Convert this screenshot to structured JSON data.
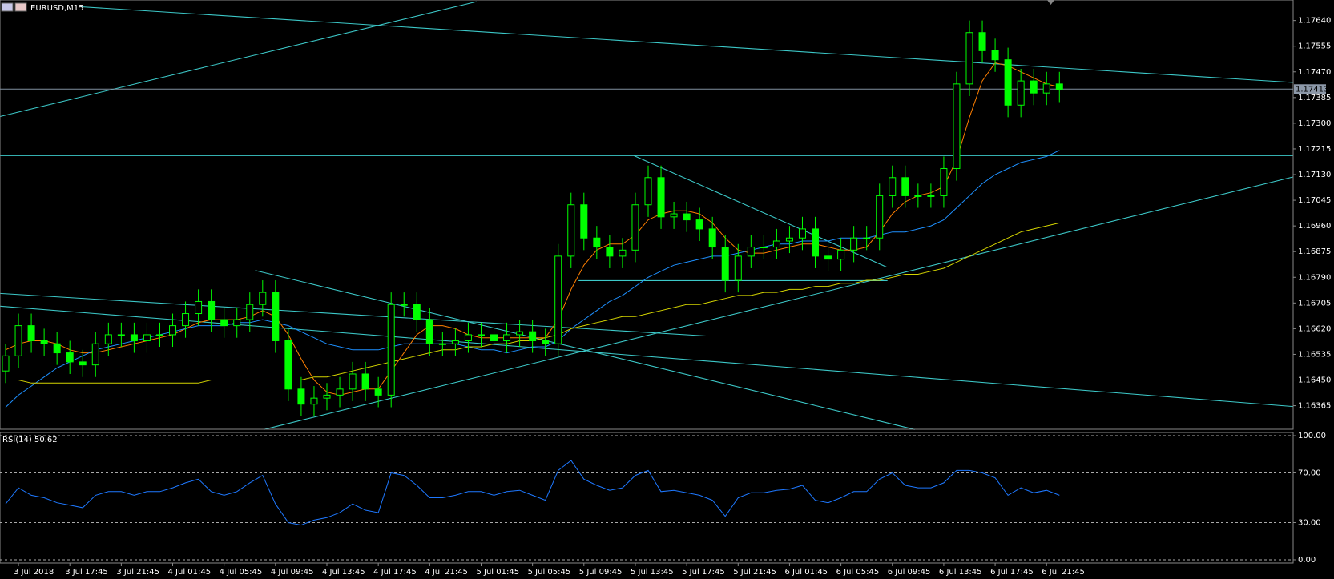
{
  "chart_data": {
    "type": "candlestick",
    "title": "EURUSD,M15",
    "last_price": 1.17413,
    "categories": [
      null,
      "3 Jul 2018",
      null,
      null,
      null,
      "3 Jul 17:45",
      null,
      null,
      null,
      "3 Jul 21:45",
      null,
      null,
      null,
      "4 Jul 01:45",
      null,
      null,
      null,
      "4 Jul 05:45",
      null,
      null,
      null,
      "4 Jul 09:45",
      null,
      null,
      null,
      "4 Jul 13:45",
      null,
      null,
      null,
      "4 Jul 17:45",
      null,
      null,
      null,
      "4 Jul 21:45",
      null,
      null,
      null,
      "5 Jul 01:45",
      null,
      null,
      null,
      "5 Jul 05:45",
      null,
      null,
      null,
      "5 Jul 09:45",
      null,
      null,
      null,
      "5 Jul 13:45",
      null,
      null,
      null,
      "5 Jul 17:45",
      null,
      null,
      null,
      "5 Jul 21:45",
      null,
      null,
      null,
      "6 Jul 01:45",
      null,
      null,
      null,
      "6 Jul 05:45",
      null,
      null,
      null,
      "6 Jul 09:45",
      null,
      null,
      null,
      "6 Jul 13:45",
      null,
      null,
      null,
      "6 Jul 17:45",
      null,
      null,
      null,
      "6 Jul 21:45",
      null
    ],
    "open": [
      1.1648,
      1.1653,
      1.1663,
      1.1658,
      1.1657,
      1.1654,
      1.1651,
      1.165,
      1.1657,
      1.166,
      1.166,
      1.1658,
      1.166,
      1.166,
      1.1663,
      1.1667,
      1.1671,
      1.1665,
      1.1663,
      1.1665,
      1.167,
      1.1674,
      1.1658,
      1.1642,
      1.1637,
      1.1639,
      1.164,
      1.1642,
      1.1647,
      1.1642,
      1.164,
      1.167,
      1.167,
      1.1665,
      1.1657,
      1.1657,
      1.1658,
      1.166,
      1.166,
      1.1658,
      1.166,
      1.1661,
      1.1658,
      1.1657,
      1.1686,
      1.1703,
      1.1692,
      1.1689,
      1.1686,
      1.1688,
      1.1703,
      1.1712,
      1.1699,
      1.17,
      1.1698,
      1.1695,
      1.1689,
      1.1678,
      1.1686,
      1.1689,
      1.1689,
      1.1691,
      1.1692,
      1.1695,
      1.1686,
      1.1685,
      1.1688,
      1.1692,
      1.1692,
      1.1706,
      1.1712,
      1.1706,
      1.1706,
      1.1706,
      1.1715,
      1.1743,
      1.176,
      1.1754,
      1.1751,
      1.1736,
      1.1744,
      1.174,
      1.1743
    ],
    "high": [
      1.1657,
      1.1667,
      1.1667,
      1.1662,
      1.1661,
      1.1658,
      1.1655,
      1.1661,
      1.1664,
      1.1664,
      1.1664,
      1.1664,
      1.1664,
      1.1667,
      1.1671,
      1.1675,
      1.1675,
      1.1669,
      1.1669,
      1.1674,
      1.1678,
      1.1678,
      1.1662,
      1.1646,
      1.1643,
      1.1644,
      1.1646,
      1.1651,
      1.1651,
      1.1646,
      1.1674,
      1.1674,
      1.1674,
      1.1669,
      1.1661,
      1.1662,
      1.1664,
      1.1664,
      1.1664,
      1.1664,
      1.1665,
      1.1665,
      1.1662,
      1.169,
      1.1707,
      1.1707,
      1.1696,
      1.1693,
      1.1692,
      1.1707,
      1.1716,
      1.1716,
      1.1704,
      1.1704,
      1.1702,
      1.1699,
      1.1693,
      1.169,
      1.1693,
      1.1693,
      1.1695,
      1.1696,
      1.1699,
      1.1699,
      1.169,
      1.1692,
      1.1696,
      1.1696,
      1.171,
      1.1716,
      1.1716,
      1.171,
      1.171,
      1.1719,
      1.1747,
      1.1764,
      1.1764,
      1.1758,
      1.1755,
      1.1748,
      1.1748,
      1.1747,
      1.1747
    ],
    "low": [
      1.1644,
      1.1649,
      1.1654,
      1.1653,
      1.165,
      1.1647,
      1.1646,
      1.1646,
      1.1653,
      1.1656,
      1.1654,
      1.1654,
      1.1656,
      1.1656,
      1.1659,
      1.1663,
      1.1661,
      1.1659,
      1.1659,
      1.1661,
      1.1666,
      1.1654,
      1.1638,
      1.1633,
      1.1633,
      1.1635,
      1.1636,
      1.1638,
      1.1638,
      1.1636,
      1.1636,
      1.1666,
      1.1661,
      1.1653,
      1.1653,
      1.1653,
      1.1654,
      1.1656,
      1.1654,
      1.1654,
      1.1656,
      1.1654,
      1.1653,
      1.1653,
      1.1682,
      1.1688,
      1.1685,
      1.1682,
      1.1682,
      1.1684,
      1.1699,
      1.1695,
      1.1695,
      1.1694,
      1.1691,
      1.1685,
      1.1674,
      1.1674,
      1.1682,
      1.1685,
      1.1685,
      1.1687,
      1.1688,
      1.1682,
      1.1681,
      1.1681,
      1.1684,
      1.1688,
      1.1688,
      1.1702,
      1.1702,
      1.1702,
      1.1702,
      1.1702,
      1.1711,
      1.1739,
      1.175,
      1.1747,
      1.1732,
      1.1732,
      1.1736,
      1.1736,
      1.1737
    ],
    "close": [
      1.1653,
      1.1663,
      1.1658,
      1.1657,
      1.1654,
      1.1651,
      1.165,
      1.1657,
      1.166,
      1.166,
      1.1658,
      1.166,
      1.166,
      1.1663,
      1.1667,
      1.1671,
      1.1665,
      1.1663,
      1.1665,
      1.167,
      1.1674,
      1.1658,
      1.1642,
      1.1637,
      1.1639,
      1.164,
      1.1642,
      1.1647,
      1.1642,
      1.164,
      1.167,
      1.167,
      1.1665,
      1.1657,
      1.1657,
      1.1658,
      1.166,
      1.166,
      1.1658,
      1.166,
      1.1661,
      1.1658,
      1.1657,
      1.1686,
      1.1703,
      1.1692,
      1.1689,
      1.1686,
      1.1688,
      1.1703,
      1.1712,
      1.1699,
      1.17,
      1.1698,
      1.1695,
      1.1689,
      1.1678,
      1.1686,
      1.1689,
      1.1689,
      1.1691,
      1.1692,
      1.1695,
      1.1686,
      1.1685,
      1.1688,
      1.1692,
      1.1692,
      1.1706,
      1.1712,
      1.1706,
      1.1706,
      1.1706,
      1.1715,
      1.1743,
      1.176,
      1.1754,
      1.1751,
      1.1736,
      1.1744,
      1.174,
      1.1743,
      1.1741
    ],
    "up_color": "#00ff00",
    "down_color": "#00ff00",
    "lines": [
      {
        "color": "#ff7f00",
        "values": [
          1.1655,
          1.1657,
          1.1658,
          1.1658,
          1.1657,
          1.1655,
          1.1654,
          1.1654,
          1.1655,
          1.1656,
          1.1657,
          1.1658,
          1.1659,
          1.166,
          1.1662,
          1.1664,
          1.1665,
          1.1665,
          1.1665,
          1.1666,
          1.1668,
          1.1666,
          1.166,
          1.1652,
          1.1645,
          1.1641,
          1.164,
          1.1641,
          1.1642,
          1.1642,
          1.1648,
          1.1654,
          1.166,
          1.1663,
          1.1663,
          1.1662,
          1.166,
          1.1659,
          1.1659,
          1.1659,
          1.1659,
          1.1659,
          1.1659,
          1.1665,
          1.1675,
          1.1683,
          1.1688,
          1.169,
          1.169,
          1.1693,
          1.1698,
          1.17,
          1.1701,
          1.1701,
          1.17,
          1.1697,
          1.1692,
          1.1688,
          1.1687,
          1.1687,
          1.1688,
          1.1689,
          1.169,
          1.169,
          1.1689,
          1.1688,
          1.1688,
          1.1689,
          1.1694,
          1.17,
          1.1704,
          1.1706,
          1.1707,
          1.1709,
          1.1718,
          1.1732,
          1.1744,
          1.175,
          1.1749,
          1.1747,
          1.1745,
          1.1743,
          1.1742
        ]
      },
      {
        "color": "#1e90ff",
        "values": [
          1.1636,
          1.164,
          1.1643,
          1.1646,
          1.1649,
          1.1651,
          1.1653,
          1.1655,
          1.1656,
          1.1657,
          1.1658,
          1.1659,
          1.166,
          1.1661,
          1.1662,
          1.1663,
          1.1663,
          1.1663,
          1.1664,
          1.1664,
          1.1665,
          1.1664,
          1.1663,
          1.1661,
          1.1659,
          1.1657,
          1.1656,
          1.1655,
          1.1655,
          1.1655,
          1.1656,
          1.1657,
          1.1657,
          1.1657,
          1.1657,
          1.1657,
          1.1656,
          1.1655,
          1.1655,
          1.1654,
          1.1655,
          1.1656,
          1.1656,
          1.1658,
          1.1662,
          1.1665,
          1.1668,
          1.1671,
          1.1673,
          1.1676,
          1.1679,
          1.1681,
          1.1683,
          1.1684,
          1.1685,
          1.1686,
          1.1686,
          1.1687,
          1.1688,
          1.1689,
          1.169,
          1.169,
          1.1691,
          1.1691,
          1.1691,
          1.1692,
          1.1692,
          1.1692,
          1.1693,
          1.1694,
          1.1694,
          1.1695,
          1.1696,
          1.1698,
          1.1702,
          1.1706,
          1.171,
          1.1713,
          1.1715,
          1.1717,
          1.1718,
          1.1719,
          1.1721
        ]
      },
      {
        "color": "#d4d400",
        "values": [
          1.1645,
          1.1645,
          1.1644,
          1.1644,
          1.1644,
          1.1644,
          1.1644,
          1.1644,
          1.1644,
          1.1644,
          1.1644,
          1.1644,
          1.1644,
          1.1644,
          1.1644,
          1.1644,
          1.1645,
          1.1645,
          1.1645,
          1.1645,
          1.1645,
          1.1645,
          1.1645,
          1.1645,
          1.1646,
          1.1646,
          1.1647,
          1.1648,
          1.1649,
          1.165,
          1.1651,
          1.1652,
          1.1653,
          1.1654,
          1.1655,
          1.1655,
          1.1656,
          1.1656,
          1.1657,
          1.1657,
          1.1658,
          1.1658,
          1.1659,
          1.166,
          1.1662,
          1.1663,
          1.1664,
          1.1665,
          1.1666,
          1.1666,
          1.1667,
          1.1668,
          1.1669,
          1.167,
          1.167,
          1.1671,
          1.1672,
          1.1673,
          1.1673,
          1.1674,
          1.1674,
          1.1675,
          1.1675,
          1.1676,
          1.1676,
          1.1677,
          1.1677,
          1.1678,
          1.1678,
          1.1679,
          1.168,
          1.168,
          1.1681,
          1.1682,
          1.1684,
          1.1686,
          1.1688,
          1.169,
          1.1692,
          1.1694,
          1.1695,
          1.1696,
          1.1697
        ]
      }
    ],
    "ylim": [
      1.16287,
      1.17708
    ],
    "yticks": [
      {
        "value": 1.1764,
        "label": "1.17640"
      },
      1.17555,
      {
        "value": 1.1747,
        "label": "1.17470"
      },
      1.17385,
      {
        "value": 1.173,
        "label": "1.17300"
      },
      1.17215,
      {
        "value": 1.1713,
        "label": "1.17130"
      },
      1.17045,
      {
        "value": 1.1696,
        "label": "1.16960"
      },
      1.16875,
      {
        "value": 1.1679,
        "label": "1.16790"
      },
      1.16705,
      {
        "value": 1.1662,
        "label": "1.16620"
      },
      1.16535,
      {
        "value": 1.1645,
        "label": "1.16450"
      },
      1.16365
    ],
    "rsi": {
      "title": "RSI(14) 50.62",
      "color": "#1e78ff",
      "values": [
        45,
        58,
        52,
        50,
        46,
        44,
        42,
        52,
        55,
        55,
        52,
        55,
        55,
        58,
        62,
        65,
        55,
        52,
        55,
        62,
        68,
        45,
        30,
        28,
        32,
        34,
        38,
        45,
        40,
        38,
        70,
        68,
        60,
        50,
        50,
        52,
        55,
        55,
        52,
        55,
        56,
        52,
        48,
        72,
        80,
        65,
        60,
        56,
        58,
        68,
        72,
        55,
        56,
        54,
        52,
        48,
        35,
        50,
        54,
        54,
        56,
        57,
        60,
        48,
        46,
        50,
        55,
        55,
        65,
        70,
        60,
        58,
        58,
        62,
        72,
        72,
        70,
        66,
        52,
        58,
        54,
        56,
        52
      ],
      "ylim": [
        -2.6,
        102.6
      ],
      "yticks": [
        {
          "value": 100,
          "label": "100.00"
        },
        {
          "value": 70,
          "label": "70.00"
        },
        {
          "value": 30,
          "label": "30.00"
        },
        {
          "value": 0,
          "label": "0.00"
        }
      ]
    }
  }
}
